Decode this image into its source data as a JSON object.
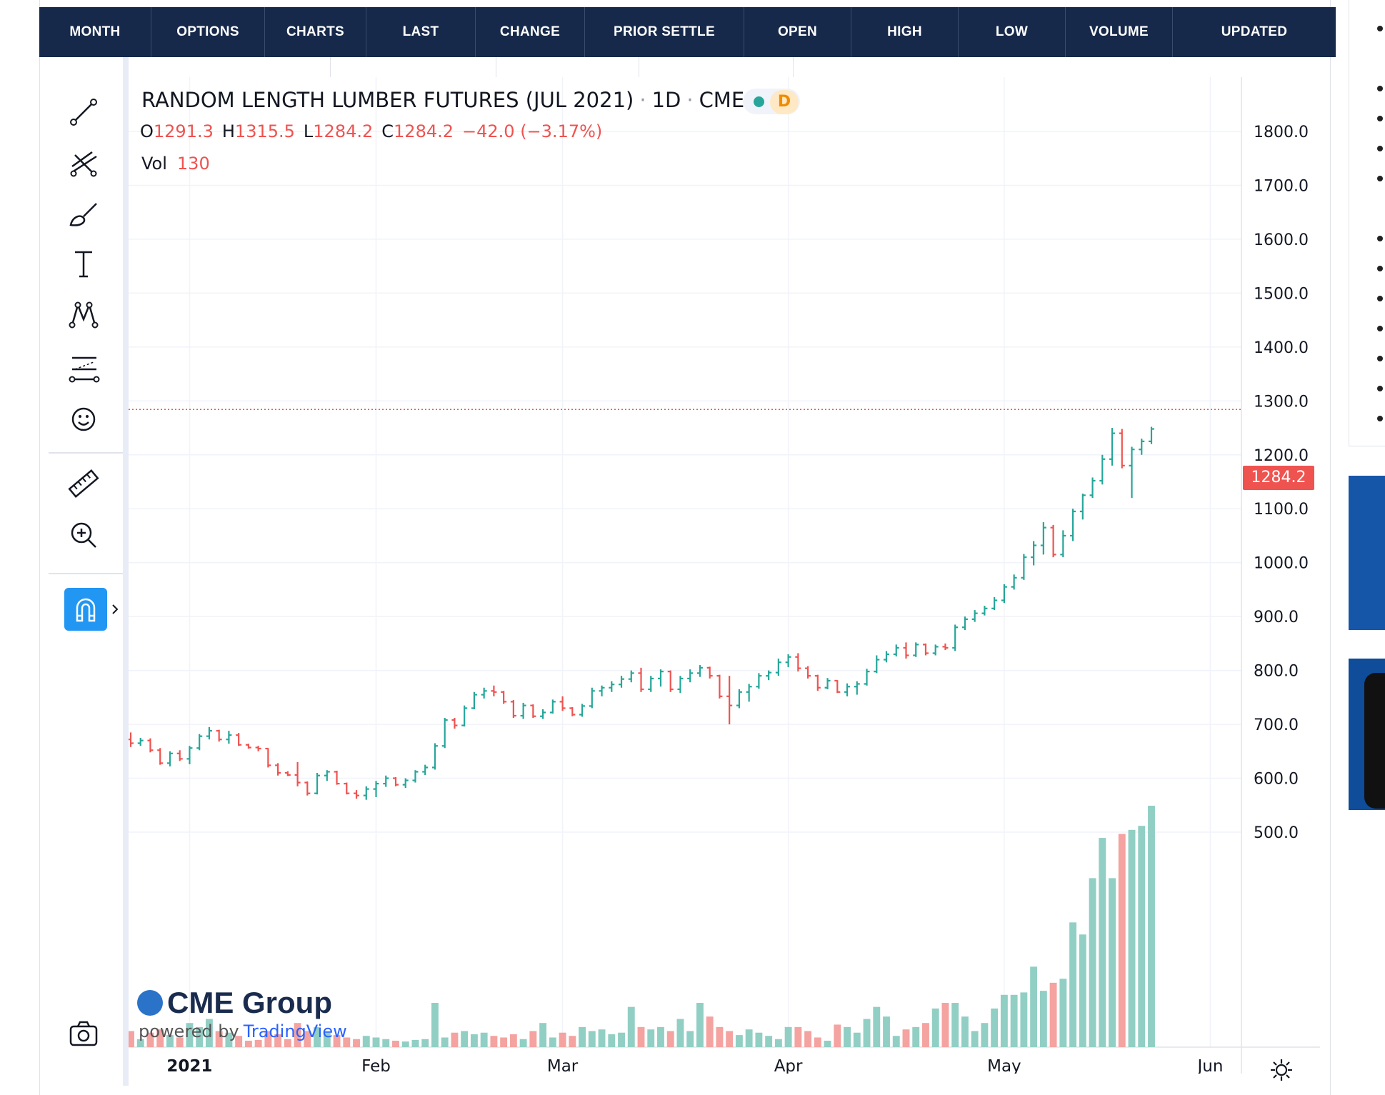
{
  "header": {
    "columns": [
      "MONTH",
      "OPTIONS",
      "CHARTS",
      "LAST",
      "CHANGE",
      "PRIOR SETTLE",
      "OPEN",
      "HIGH",
      "LOW",
      "VOLUME",
      "UPDATED"
    ]
  },
  "toolbar": {
    "tools": [
      "trendline-icon",
      "fib-icon",
      "brush-icon",
      "text-icon",
      "pattern-icon",
      "forecast-icon",
      "emoji-icon",
      "ruler-icon",
      "zoom-in-icon",
      "magnet-icon",
      "camera-icon"
    ]
  },
  "legend": {
    "symbol": "RANDOM LENGTH LUMBER FUTURES (JUL 2021)",
    "interval": "1D",
    "exchange": "CME",
    "status_letter": "D",
    "open_label": "O",
    "open": "1291.3",
    "high_label": "H",
    "high": "1315.5",
    "low_label": "L",
    "low": "1284.2",
    "close_label": "C",
    "close": "1284.2",
    "change": "−42.0 (−3.17%)",
    "vol_label": "Vol",
    "vol": "130"
  },
  "branding": {
    "logo_text": "CME Group",
    "powered_text": "powered by",
    "powered_link": "TradingView"
  },
  "colors": {
    "up": "#26a69a",
    "down": "#ef5350",
    "up_vol": "#91cfc4",
    "down_vol": "#f4a3a0",
    "header": "#16294a"
  },
  "chart_data": {
    "type": "bar",
    "title": "RANDOM LENGTH LUMBER FUTURES (JUL 2021) · 1D · CME",
    "last_price_label": "1284.2",
    "y_axis": {
      "ticks": [
        "1800.0",
        "1700.0",
        "1600.0",
        "1500.0",
        "1400.0",
        "1300.0",
        "1200.0",
        "1100.0",
        "1000.0",
        "900.0",
        "800.0",
        "700.0",
        "600.0",
        "500.0"
      ],
      "ylim": [
        460,
        1860
      ]
    },
    "x_axis": {
      "labels": [
        "2021",
        "Feb",
        "Mar",
        "Apr",
        "May",
        "Jun"
      ]
    },
    "bars": [
      {
        "date": "2020-12-23",
        "o": 672,
        "h": 685,
        "l": 658,
        "c": 665,
        "v": 20
      },
      {
        "date": "2020-12-24",
        "o": 665,
        "h": 675,
        "l": 660,
        "c": 670,
        "v": 10
      },
      {
        "date": "2020-12-28",
        "o": 670,
        "h": 674,
        "l": 648,
        "c": 652,
        "v": 18
      },
      {
        "date": "2020-12-29",
        "o": 652,
        "h": 656,
        "l": 625,
        "c": 628,
        "v": 22
      },
      {
        "date": "2020-12-30",
        "o": 628,
        "h": 650,
        "l": 622,
        "c": 646,
        "v": 15
      },
      {
        "date": "2020-12-31",
        "o": 646,
        "h": 652,
        "l": 632,
        "c": 636,
        "v": 12
      },
      {
        "date": "2021-01-04",
        "o": 636,
        "h": 660,
        "l": 626,
        "c": 656,
        "v": 30
      },
      {
        "date": "2021-01-05",
        "o": 656,
        "h": 682,
        "l": 652,
        "c": 678,
        "v": 25
      },
      {
        "date": "2021-01-06",
        "o": 678,
        "h": 695,
        "l": 672,
        "c": 688,
        "v": 35
      },
      {
        "date": "2021-01-07",
        "o": 688,
        "h": 690,
        "l": 668,
        "c": 672,
        "v": 20
      },
      {
        "date": "2021-01-08",
        "o": 672,
        "h": 688,
        "l": 664,
        "c": 680,
        "v": 18
      },
      {
        "date": "2021-01-11",
        "o": 680,
        "h": 684,
        "l": 660,
        "c": 662,
        "v": 14
      },
      {
        "date": "2021-01-12",
        "o": 662,
        "h": 664,
        "l": 655,
        "c": 657,
        "v": 8
      },
      {
        "date": "2021-01-13",
        "o": 657,
        "h": 660,
        "l": 650,
        "c": 655,
        "v": 9
      },
      {
        "date": "2021-01-14",
        "o": 655,
        "h": 656,
        "l": 620,
        "c": 624,
        "v": 20
      },
      {
        "date": "2021-01-15",
        "o": 624,
        "h": 628,
        "l": 605,
        "c": 610,
        "v": 16
      },
      {
        "date": "2021-01-19",
        "o": 610,
        "h": 613,
        "l": 604,
        "c": 606,
        "v": 10
      },
      {
        "date": "2021-01-20",
        "o": 606,
        "h": 630,
        "l": 585,
        "c": 592,
        "v": 30
      },
      {
        "date": "2021-01-21",
        "o": 592,
        "h": 594,
        "l": 568,
        "c": 572,
        "v": 20
      },
      {
        "date": "2021-01-22",
        "o": 572,
        "h": 610,
        "l": 570,
        "c": 605,
        "v": 25
      },
      {
        "date": "2021-01-25",
        "o": 605,
        "h": 615,
        "l": 595,
        "c": 612,
        "v": 18
      },
      {
        "date": "2021-01-26",
        "o": 612,
        "h": 614,
        "l": 588,
        "c": 590,
        "v": 15
      },
      {
        "date": "2021-01-27",
        "o": 590,
        "h": 592,
        "l": 570,
        "c": 572,
        "v": 12
      },
      {
        "date": "2021-01-28",
        "o": 572,
        "h": 578,
        "l": 562,
        "c": 568,
        "v": 10
      },
      {
        "date": "2021-01-29",
        "o": 568,
        "h": 585,
        "l": 560,
        "c": 580,
        "v": 14
      },
      {
        "date": "2021-02-01",
        "o": 580,
        "h": 595,
        "l": 565,
        "c": 590,
        "v": 12
      },
      {
        "date": "2021-02-02",
        "o": 590,
        "h": 605,
        "l": 584,
        "c": 600,
        "v": 10
      },
      {
        "date": "2021-02-03",
        "o": 600,
        "h": 602,
        "l": 585,
        "c": 588,
        "v": 8
      },
      {
        "date": "2021-02-04",
        "o": 588,
        "h": 600,
        "l": 582,
        "c": 596,
        "v": 7
      },
      {
        "date": "2021-02-05",
        "o": 596,
        "h": 615,
        "l": 592,
        "c": 612,
        "v": 9
      },
      {
        "date": "2021-02-08",
        "o": 612,
        "h": 625,
        "l": 606,
        "c": 620,
        "v": 10
      },
      {
        "date": "2021-02-09",
        "o": 620,
        "h": 665,
        "l": 616,
        "c": 660,
        "v": 55
      },
      {
        "date": "2021-02-10",
        "o": 660,
        "h": 712,
        "l": 656,
        "c": 708,
        "v": 12
      },
      {
        "date": "2021-02-11",
        "o": 708,
        "h": 712,
        "l": 692,
        "c": 698,
        "v": 18
      },
      {
        "date": "2021-02-12",
        "o": 698,
        "h": 735,
        "l": 696,
        "c": 730,
        "v": 20
      },
      {
        "date": "2021-02-16",
        "o": 730,
        "h": 760,
        "l": 728,
        "c": 755,
        "v": 16
      },
      {
        "date": "2021-02-17",
        "o": 755,
        "h": 768,
        "l": 748,
        "c": 762,
        "v": 18
      },
      {
        "date": "2021-02-18",
        "o": 762,
        "h": 772,
        "l": 752,
        "c": 760,
        "v": 14
      },
      {
        "date": "2021-02-19",
        "o": 760,
        "h": 762,
        "l": 738,
        "c": 742,
        "v": 12
      },
      {
        "date": "2021-02-22",
        "o": 742,
        "h": 745,
        "l": 712,
        "c": 716,
        "v": 16
      },
      {
        "date": "2021-02-23",
        "o": 716,
        "h": 740,
        "l": 710,
        "c": 735,
        "v": 10
      },
      {
        "date": "2021-02-24",
        "o": 735,
        "h": 737,
        "l": 712,
        "c": 715,
        "v": 20
      },
      {
        "date": "2021-02-25",
        "o": 715,
        "h": 728,
        "l": 710,
        "c": 722,
        "v": 30
      },
      {
        "date": "2021-02-26",
        "o": 722,
        "h": 746,
        "l": 720,
        "c": 742,
        "v": 12
      },
      {
        "date": "2021-03-01",
        "o": 742,
        "h": 752,
        "l": 725,
        "c": 730,
        "v": 18
      },
      {
        "date": "2021-03-02",
        "o": 730,
        "h": 732,
        "l": 715,
        "c": 718,
        "v": 14
      },
      {
        "date": "2021-03-03",
        "o": 718,
        "h": 738,
        "l": 714,
        "c": 734,
        "v": 25
      },
      {
        "date": "2021-03-04",
        "o": 734,
        "h": 768,
        "l": 730,
        "c": 762,
        "v": 20
      },
      {
        "date": "2021-03-05",
        "o": 762,
        "h": 772,
        "l": 752,
        "c": 768,
        "v": 22
      },
      {
        "date": "2021-03-08",
        "o": 768,
        "h": 780,
        "l": 760,
        "c": 774,
        "v": 16
      },
      {
        "date": "2021-03-09",
        "o": 774,
        "h": 790,
        "l": 768,
        "c": 784,
        "v": 18
      },
      {
        "date": "2021-03-10",
        "o": 784,
        "h": 800,
        "l": 778,
        "c": 795,
        "v": 50
      },
      {
        "date": "2021-03-11",
        "o": 795,
        "h": 805,
        "l": 760,
        "c": 765,
        "v": 25
      },
      {
        "date": "2021-03-12",
        "o": 765,
        "h": 790,
        "l": 760,
        "c": 785,
        "v": 22
      },
      {
        "date": "2021-03-15",
        "o": 785,
        "h": 802,
        "l": 770,
        "c": 798,
        "v": 25
      },
      {
        "date": "2021-03-16",
        "o": 798,
        "h": 800,
        "l": 760,
        "c": 765,
        "v": 20
      },
      {
        "date": "2021-03-17",
        "o": 765,
        "h": 790,
        "l": 758,
        "c": 785,
        "v": 35
      },
      {
        "date": "2021-03-18",
        "o": 785,
        "h": 802,
        "l": 778,
        "c": 795,
        "v": 20
      },
      {
        "date": "2021-03-19",
        "o": 795,
        "h": 810,
        "l": 788,
        "c": 805,
        "v": 55
      },
      {
        "date": "2021-03-22",
        "o": 805,
        "h": 807,
        "l": 785,
        "c": 790,
        "v": 38
      },
      {
        "date": "2021-03-23",
        "o": 790,
        "h": 792,
        "l": 748,
        "c": 752,
        "v": 25
      },
      {
        "date": "2021-03-24",
        "o": 752,
        "h": 790,
        "l": 700,
        "c": 735,
        "v": 20
      },
      {
        "date": "2021-03-25",
        "o": 735,
        "h": 765,
        "l": 730,
        "c": 760,
        "v": 15
      },
      {
        "date": "2021-03-26",
        "o": 760,
        "h": 775,
        "l": 742,
        "c": 770,
        "v": 22
      },
      {
        "date": "2021-03-29",
        "o": 770,
        "h": 795,
        "l": 766,
        "c": 790,
        "v": 18
      },
      {
        "date": "2021-03-30",
        "o": 790,
        "h": 800,
        "l": 782,
        "c": 796,
        "v": 14
      },
      {
        "date": "2021-03-31",
        "o": 796,
        "h": 822,
        "l": 790,
        "c": 815,
        "v": 10
      },
      {
        "date": "2021-04-01",
        "o": 815,
        "h": 830,
        "l": 806,
        "c": 825,
        "v": 25
      },
      {
        "date": "2021-04-02",
        "o": 825,
        "h": 832,
        "l": 798,
        "c": 804,
        "v": 25
      },
      {
        "date": "2021-04-05",
        "o": 804,
        "h": 808,
        "l": 785,
        "c": 790,
        "v": 20
      },
      {
        "date": "2021-04-06",
        "o": 790,
        "h": 792,
        "l": 762,
        "c": 768,
        "v": 12
      },
      {
        "date": "2021-04-07",
        "o": 768,
        "h": 786,
        "l": 765,
        "c": 781,
        "v": 8
      },
      {
        "date": "2021-04-08",
        "o": 781,
        "h": 782,
        "l": 758,
        "c": 760,
        "v": 28
      },
      {
        "date": "2021-04-09",
        "o": 760,
        "h": 776,
        "l": 752,
        "c": 770,
        "v": 25
      },
      {
        "date": "2021-04-12",
        "o": 770,
        "h": 780,
        "l": 755,
        "c": 775,
        "v": 18
      },
      {
        "date": "2021-04-13",
        "o": 775,
        "h": 803,
        "l": 772,
        "c": 798,
        "v": 35
      },
      {
        "date": "2021-04-14",
        "o": 798,
        "h": 828,
        "l": 795,
        "c": 820,
        "v": 50
      },
      {
        "date": "2021-04-15",
        "o": 820,
        "h": 836,
        "l": 815,
        "c": 830,
        "v": 38
      },
      {
        "date": "2021-04-16",
        "o": 830,
        "h": 848,
        "l": 826,
        "c": 842,
        "v": 14
      },
      {
        "date": "2021-04-19",
        "o": 842,
        "h": 852,
        "l": 822,
        "c": 828,
        "v": 22
      },
      {
        "date": "2021-04-20",
        "o": 828,
        "h": 852,
        "l": 825,
        "c": 848,
        "v": 25
      },
      {
        "date": "2021-04-21",
        "o": 848,
        "h": 850,
        "l": 828,
        "c": 832,
        "v": 30
      },
      {
        "date": "2021-04-22",
        "o": 832,
        "h": 848,
        "l": 828,
        "c": 844,
        "v": 48
      },
      {
        "date": "2021-04-23",
        "o": 844,
        "h": 850,
        "l": 838,
        "c": 842,
        "v": 55
      },
      {
        "date": "2021-04-26",
        "o": 842,
        "h": 885,
        "l": 836,
        "c": 880,
        "v": 55
      },
      {
        "date": "2021-04-27",
        "o": 880,
        "h": 900,
        "l": 875,
        "c": 895,
        "v": 38
      },
      {
        "date": "2021-04-28",
        "o": 895,
        "h": 912,
        "l": 890,
        "c": 906,
        "v": 20
      },
      {
        "date": "2021-04-29",
        "o": 906,
        "h": 920,
        "l": 902,
        "c": 915,
        "v": 30
      },
      {
        "date": "2021-04-30",
        "o": 915,
        "h": 936,
        "l": 912,
        "c": 930,
        "v": 48
      },
      {
        "date": "2021-05-03",
        "o": 930,
        "h": 960,
        "l": 925,
        "c": 955,
        "v": 65
      },
      {
        "date": "2021-05-04",
        "o": 955,
        "h": 978,
        "l": 950,
        "c": 972,
        "v": 65
      },
      {
        "date": "2021-05-05",
        "o": 972,
        "h": 1016,
        "l": 968,
        "c": 1010,
        "v": 68
      },
      {
        "date": "2021-05-06",
        "o": 1010,
        "h": 1040,
        "l": 995,
        "c": 1032,
        "v": 100
      },
      {
        "date": "2021-05-07",
        "o": 1032,
        "h": 1075,
        "l": 1015,
        "c": 1065,
        "v": 70
      },
      {
        "date": "2021-05-10",
        "o": 1065,
        "h": 1070,
        "l": 1010,
        "c": 1015,
        "v": 80
      },
      {
        "date": "2021-05-11",
        "o": 1015,
        "h": 1060,
        "l": 1010,
        "c": 1050,
        "v": 85
      },
      {
        "date": "2021-05-12",
        "o": 1050,
        "h": 1100,
        "l": 1040,
        "c": 1095,
        "v": 155
      },
      {
        "date": "2021-05-13",
        "o": 1095,
        "h": 1128,
        "l": 1080,
        "c": 1125,
        "v": 140
      },
      {
        "date": "2021-05-14",
        "o": 1125,
        "h": 1158,
        "l": 1120,
        "c": 1152,
        "v": 210
      },
      {
        "date": "2021-05-17",
        "o": 1152,
        "h": 1200,
        "l": 1145,
        "c": 1192,
        "v": 260
      },
      {
        "date": "2021-05-18",
        "o": 1192,
        "h": 1250,
        "l": 1180,
        "c": 1240,
        "v": 210
      },
      {
        "date": "2021-05-19",
        "o": 1240,
        "h": 1248,
        "l": 1175,
        "c": 1180,
        "v": 265
      },
      {
        "date": "2021-05-20",
        "o": 1180,
        "h": 1215,
        "l": 1120,
        "c": 1210,
        "v": 270
      },
      {
        "date": "2021-05-21",
        "o": 1210,
        "h": 1230,
        "l": 1200,
        "c": 1225,
        "v": 275
      },
      {
        "date": "2021-05-24",
        "o": 1225,
        "h": 1252,
        "l": 1220,
        "c": 1248,
        "v": 300
      }
    ]
  }
}
